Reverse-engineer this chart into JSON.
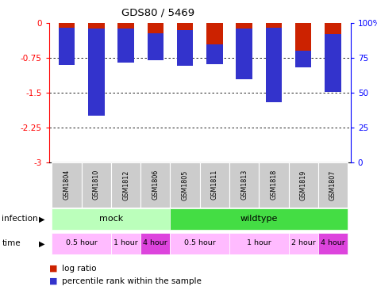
{
  "title": "GDS80 / 5469",
  "samples": [
    "GSM1804",
    "GSM1810",
    "GSM1812",
    "GSM1806",
    "GSM1805",
    "GSM1811",
    "GSM1813",
    "GSM1818",
    "GSM1819",
    "GSM1807"
  ],
  "log_ratio": [
    -0.9,
    -2.0,
    -0.85,
    -0.8,
    -0.92,
    -0.88,
    -1.2,
    -1.7,
    -0.95,
    -1.48
  ],
  "percentile": [
    3,
    4,
    4,
    7,
    5,
    15,
    4,
    3,
    20,
    8
  ],
  "ylim_left": [
    -3,
    0
  ],
  "ylim_right": [
    0,
    100
  ],
  "yticks_left": [
    0,
    -0.75,
    -1.5,
    -2.25,
    -3
  ],
  "yticks_right": [
    0,
    25,
    50,
    75,
    100
  ],
  "bar_color": "#cc2200",
  "percentile_color": "#3333cc",
  "infection_mock_color": "#bbffbb",
  "infection_wildtype_color": "#44dd44",
  "time_light_color": "#ffbbff",
  "time_dark_color": "#dd44dd",
  "sample_bg_color": "#cccccc",
  "legend_items": [
    {
      "color": "#cc2200",
      "label": "log ratio"
    },
    {
      "color": "#3333cc",
      "label": "percentile rank within the sample"
    }
  ]
}
